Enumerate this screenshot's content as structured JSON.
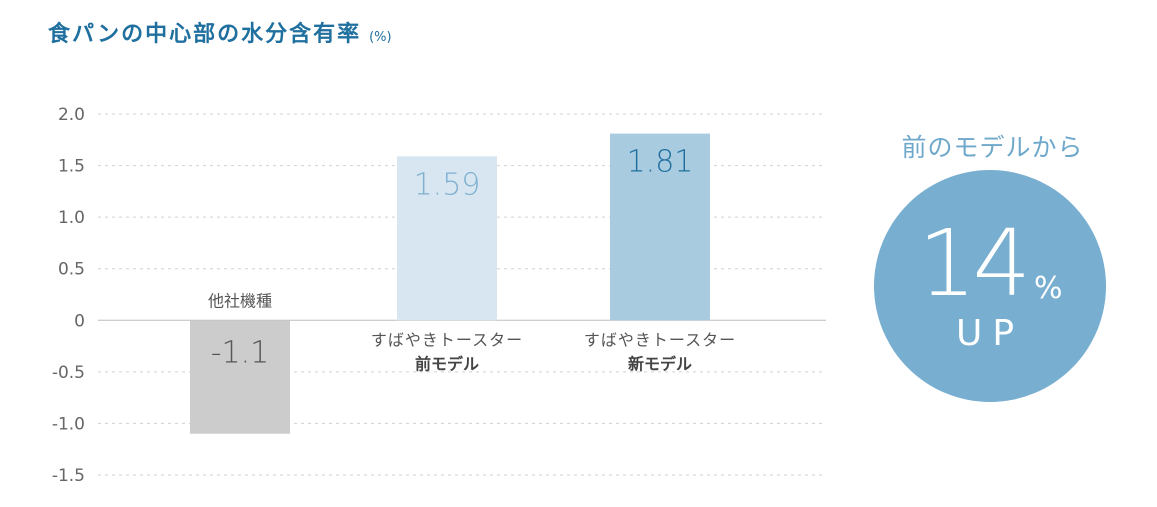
{
  "title": "食パンの中心部の水分含有率",
  "title_unit": "(%)",
  "colors": {
    "title": "#1f6f9f",
    "bar_other": "#cccccc",
    "bar_prev": "#d7e6f0",
    "bar_new": "#a9cbe0",
    "label_prev": "#7fb0d2",
    "label_new": "#1f6f9f",
    "circle": "#78aed0"
  },
  "chart_data": {
    "type": "bar",
    "title": "食パンの中心部の水分含有率",
    "unit": "(%)",
    "ylim": [
      -1.5,
      2.0
    ],
    "yticks": [
      "2.0",
      "1.5",
      "1.0",
      "0.5",
      "0",
      "-0.5",
      "-1.0",
      "-1.5"
    ],
    "ytick_values": [
      2.0,
      1.5,
      1.0,
      0.5,
      0,
      -0.5,
      -1.0,
      -1.5
    ],
    "grid": true,
    "categories": [
      {
        "line1": "他社機種",
        "line2": ""
      },
      {
        "line1": "すばやきトースター",
        "line2": "前モデル"
      },
      {
        "line1": "すばやきトースター",
        "line2": "新モデル"
      }
    ],
    "values": [
      -1.1,
      1.59,
      1.81
    ],
    "value_labels": [
      "-1.1",
      "1.59",
      "1.81"
    ]
  },
  "callout": {
    "heading": "前のモデルから",
    "value": "14",
    "unit": "%",
    "direction": "UP"
  }
}
